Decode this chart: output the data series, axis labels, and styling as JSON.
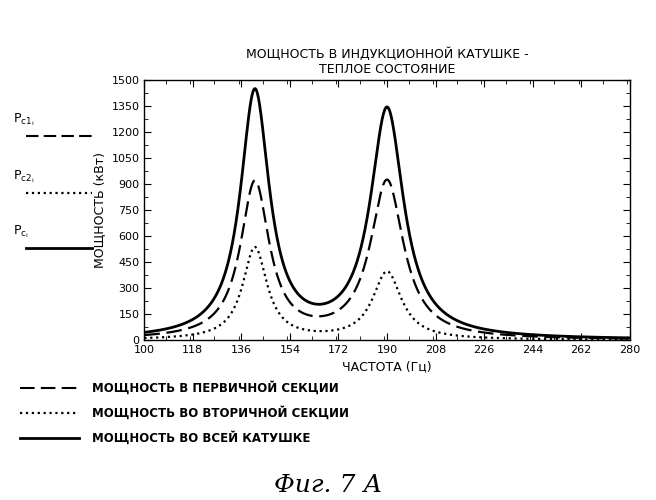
{
  "title_line1": "МОЩНОСТЬ В ИНДУКЦИОННОЙ КАТУШКЕ -",
  "title_line2": "ТЕПЛОЕ СОСТОЯНИЕ",
  "xlabel": "ЧАСТОТА (Гц)",
  "ylabel": "МОЩНОСТЬ (кВт)",
  "fig_label": "Фиг. 7 А",
  "xlim": [
    100,
    280
  ],
  "ylim": [
    0,
    1500
  ],
  "xticks": [
    100,
    118,
    136,
    154,
    172,
    190,
    208,
    226,
    244,
    262,
    280
  ],
  "yticks": [
    0,
    150,
    300,
    450,
    600,
    750,
    900,
    1050,
    1200,
    1350,
    1500
  ],
  "peak1_freq": 141,
  "peak2_freq": 190,
  "peak1_solid": 1420,
  "peak2_solid": 1320,
  "peak1_dash": 900,
  "peak2_dash": 910,
  "peak1_dot": 530,
  "peak2_dot": 390,
  "sigma_solid1": 6.5,
  "sigma_solid2": 7.5,
  "sigma_dash1": 6.5,
  "sigma_dash2": 7.5,
  "sigma_dot1": 5.5,
  "sigma_dot2": 6.5,
  "legend_label1": "МОЩНОСТЬ В ПЕРВИЧНОЙ СЕКЦИИ",
  "legend_label2": "МОЩНОСТЬ ВО ВТОРИЧНОЙ СЕКЦИИ",
  "legend_label3": "МОЩНОСТЬ ВО ВСЕЙ КАТУШКЕ",
  "background_color": "#ffffff",
  "line_color": "#000000"
}
